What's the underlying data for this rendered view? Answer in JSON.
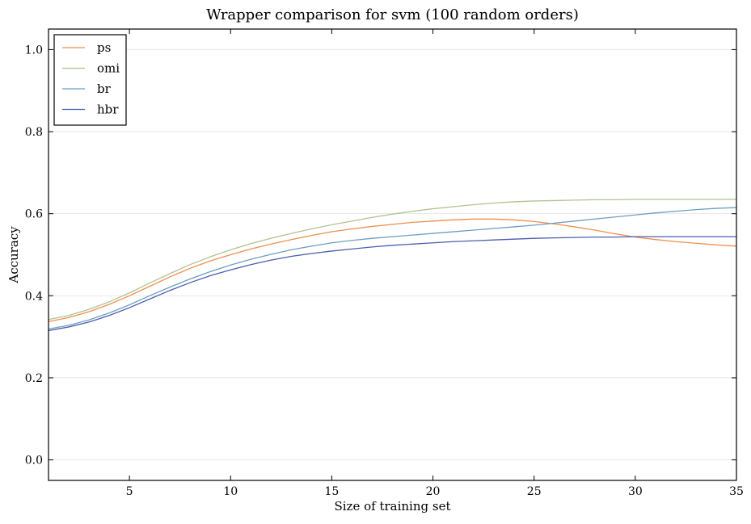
{
  "chart_data": {
    "type": "line",
    "title": "Wrapper comparison for svm (100 random orders)",
    "xlabel": "Size of training set",
    "ylabel": "Accuracy",
    "xlim": [
      1,
      35
    ],
    "ylim": [
      -0.05,
      1.05
    ],
    "xticks": [
      5,
      10,
      15,
      20,
      25,
      30,
      35
    ],
    "yticks": [
      0.0,
      0.2,
      0.4,
      0.6,
      0.8,
      1.0
    ],
    "xtick_labels": [
      "5",
      "10",
      "15",
      "20",
      "25",
      "30",
      "35"
    ],
    "ytick_labels": [
      "0.0",
      "0.2",
      "0.4",
      "0.6",
      "0.8",
      "1.0"
    ],
    "grid": "horizontal",
    "legend_position": "top-left",
    "x": [
      1,
      2,
      3,
      4,
      5,
      6,
      7,
      8,
      9,
      10,
      11,
      12,
      13,
      14,
      15,
      16,
      17,
      18,
      19,
      20,
      21,
      22,
      23,
      24,
      25,
      26,
      27,
      28,
      29,
      30,
      31,
      32,
      33,
      34,
      35
    ],
    "series": [
      {
        "name": "ps",
        "color": "#ee8f4f",
        "values": [
          0.337,
          0.347,
          0.361,
          0.379,
          0.4,
          0.423,
          0.446,
          0.467,
          0.485,
          0.5,
          0.514,
          0.526,
          0.537,
          0.547,
          0.556,
          0.563,
          0.569,
          0.574,
          0.579,
          0.582,
          0.585,
          0.587,
          0.587,
          0.585,
          0.581,
          0.575,
          0.568,
          0.56,
          0.551,
          0.543,
          0.537,
          0.532,
          0.528,
          0.524,
          0.521
        ]
      },
      {
        "name": "omi",
        "color": "#b2c290",
        "values": [
          0.342,
          0.352,
          0.367,
          0.385,
          0.407,
          0.431,
          0.454,
          0.476,
          0.495,
          0.512,
          0.527,
          0.54,
          0.552,
          0.563,
          0.573,
          0.582,
          0.591,
          0.599,
          0.606,
          0.612,
          0.617,
          0.622,
          0.626,
          0.629,
          0.631,
          0.632,
          0.633,
          0.634,
          0.634,
          0.635,
          0.635,
          0.635,
          0.635,
          0.635,
          0.635
        ]
      },
      {
        "name": "br",
        "color": "#6e9ec0",
        "values": [
          0.319,
          0.328,
          0.341,
          0.358,
          0.378,
          0.4,
          0.421,
          0.441,
          0.459,
          0.475,
          0.489,
          0.501,
          0.512,
          0.521,
          0.529,
          0.535,
          0.54,
          0.544,
          0.548,
          0.552,
          0.556,
          0.56,
          0.564,
          0.568,
          0.572,
          0.577,
          0.582,
          0.587,
          0.592,
          0.597,
          0.602,
          0.606,
          0.61,
          0.613,
          0.615
        ]
      },
      {
        "name": "hbr",
        "color": "#4a5eb0",
        "values": [
          0.315,
          0.324,
          0.336,
          0.352,
          0.371,
          0.392,
          0.413,
          0.432,
          0.449,
          0.463,
          0.476,
          0.487,
          0.496,
          0.503,
          0.509,
          0.514,
          0.519,
          0.523,
          0.526,
          0.529,
          0.532,
          0.534,
          0.536,
          0.538,
          0.54,
          0.541,
          0.542,
          0.543,
          0.543,
          0.544,
          0.544,
          0.544,
          0.544,
          0.544,
          0.544
        ]
      }
    ]
  }
}
